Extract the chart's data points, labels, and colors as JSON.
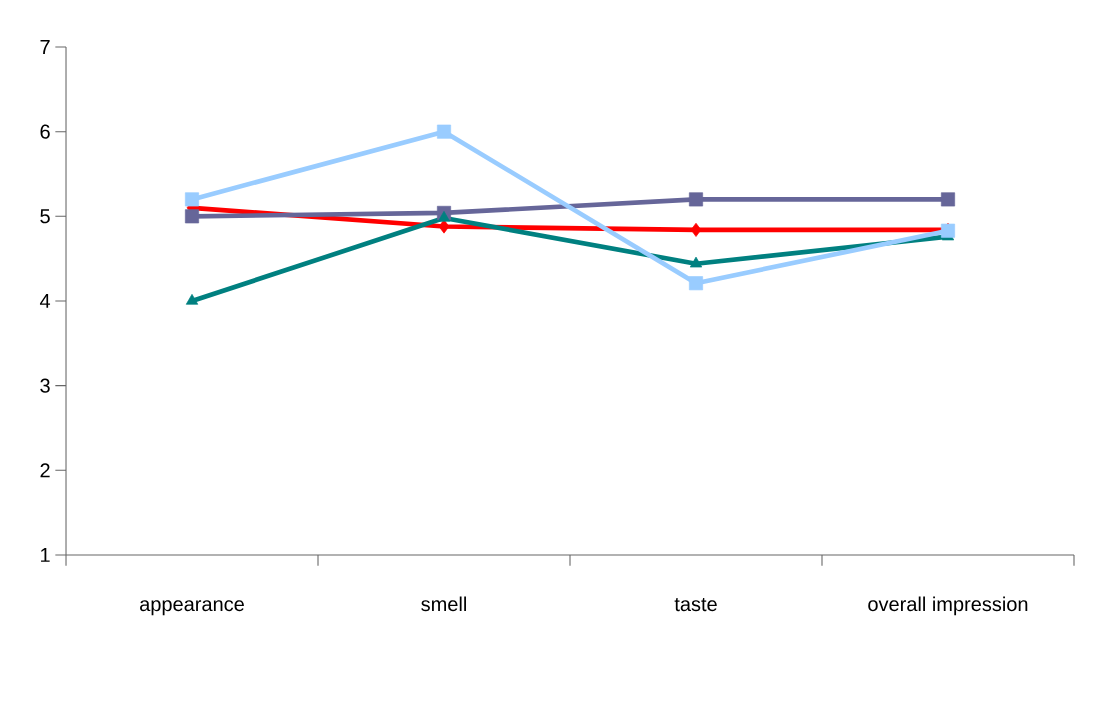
{
  "chart_data": {
    "type": "line",
    "categories": [
      "appearance",
      "smell",
      "taste",
      "overall impression"
    ],
    "series": [
      {
        "color": "#ff0000",
        "marker": "diamond",
        "values": [
          5.1,
          4.88,
          4.84,
          4.84
        ]
      },
      {
        "color": "#666699",
        "marker": "square",
        "values": [
          5.0,
          5.04,
          5.2,
          5.2
        ]
      },
      {
        "color": "#008080",
        "marker": "triangle",
        "values": [
          4.0,
          4.98,
          4.44,
          4.76
        ]
      },
      {
        "color": "#99ccff",
        "marker": "square",
        "values": [
          5.2,
          6.0,
          4.21,
          4.83
        ]
      }
    ],
    "ylim": [
      1,
      7
    ],
    "yticks": [
      1,
      2,
      3,
      4,
      5,
      6,
      7
    ],
    "grid": false
  }
}
